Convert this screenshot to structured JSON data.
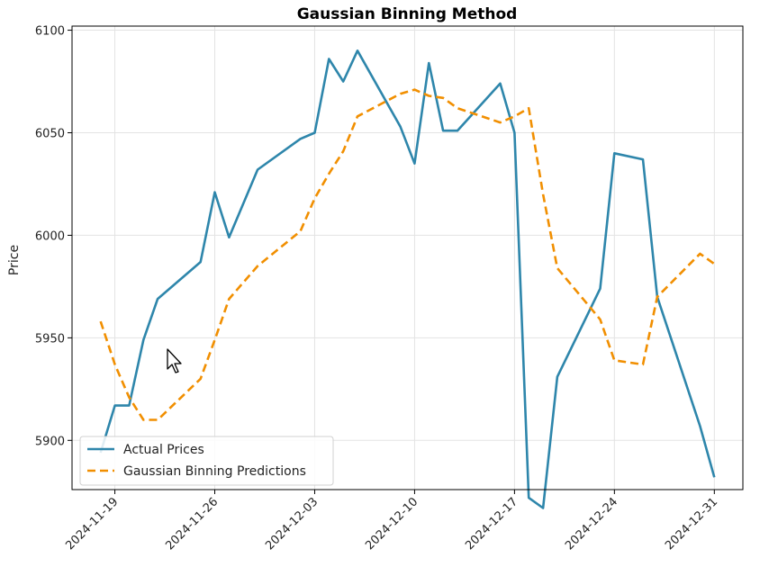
{
  "chart_data": {
    "type": "line",
    "title": "Gaussian Binning Method",
    "xlabel": "",
    "ylabel": "Price",
    "xlim": [
      "2024-11-16",
      "2025-01-02"
    ],
    "ylim": [
      5876,
      6102
    ],
    "yticks": [
      5900,
      5950,
      6000,
      6050,
      6100
    ],
    "xticks": [
      "2024-11-19",
      "2024-11-26",
      "2024-12-03",
      "2024-12-10",
      "2024-12-17",
      "2024-12-24",
      "2024-12-31"
    ],
    "grid": true,
    "legend": {
      "position": "lower-left"
    },
    "series": [
      {
        "name": "Actual Prices",
        "color": "#2e86ab",
        "style": "solid",
        "points": [
          [
            "2024-11-18",
            5894
          ],
          [
            "2024-11-19",
            5917
          ],
          [
            "2024-11-20",
            5917
          ],
          [
            "2024-11-21",
            5949
          ],
          [
            "2024-11-22",
            5969
          ],
          [
            "2024-11-25",
            5987
          ],
          [
            "2024-11-26",
            6021
          ],
          [
            "2024-11-27",
            5999
          ],
          [
            "2024-11-29",
            6032
          ],
          [
            "2024-12-02",
            6047
          ],
          [
            "2024-12-03",
            6050
          ],
          [
            "2024-12-04",
            6086
          ],
          [
            "2024-12-05",
            6075
          ],
          [
            "2024-12-06",
            6090
          ],
          [
            "2024-12-09",
            6053
          ],
          [
            "2024-12-10",
            6035
          ],
          [
            "2024-12-11",
            6084
          ],
          [
            "2024-12-12",
            6051
          ],
          [
            "2024-12-13",
            6051
          ],
          [
            "2024-12-16",
            6074
          ],
          [
            "2024-12-17",
            6050
          ],
          [
            "2024-12-18",
            5872
          ],
          [
            "2024-12-19",
            5867
          ],
          [
            "2024-12-20",
            5931
          ],
          [
            "2024-12-23",
            5974
          ],
          [
            "2024-12-24",
            6040
          ],
          [
            "2024-12-26",
            6037
          ],
          [
            "2024-12-27",
            5970
          ],
          [
            "2024-12-30",
            5907
          ],
          [
            "2024-12-31",
            5882
          ]
        ]
      },
      {
        "name": "Gaussian Binning Predictions",
        "color": "#f18f01",
        "style": "dashed",
        "points": [
          [
            "2024-11-18",
            5958
          ],
          [
            "2024-11-19",
            5937
          ],
          [
            "2024-11-20",
            5921
          ],
          [
            "2024-11-21",
            5910
          ],
          [
            "2024-11-22",
            5910
          ],
          [
            "2024-11-25",
            5930
          ],
          [
            "2024-11-26",
            5949
          ],
          [
            "2024-11-27",
            5969
          ],
          [
            "2024-11-29",
            5985
          ],
          [
            "2024-12-02",
            6002
          ],
          [
            "2024-12-03",
            6018
          ],
          [
            "2024-12-04",
            6030
          ],
          [
            "2024-12-05",
            6041
          ],
          [
            "2024-12-06",
            6058
          ],
          [
            "2024-12-09",
            6069
          ],
          [
            "2024-12-10",
            6071
          ],
          [
            "2024-12-11",
            6068
          ],
          [
            "2024-12-12",
            6067
          ],
          [
            "2024-12-13",
            6062
          ],
          [
            "2024-12-16",
            6055
          ],
          [
            "2024-12-17",
            6058
          ],
          [
            "2024-12-18",
            6062
          ],
          [
            "2024-12-19",
            6020
          ],
          [
            "2024-12-20",
            5984
          ],
          [
            "2024-12-23",
            5959
          ],
          [
            "2024-12-24",
            5939
          ],
          [
            "2024-12-26",
            5937
          ],
          [
            "2024-12-27",
            5970
          ],
          [
            "2024-12-30",
            5991
          ],
          [
            "2024-12-31",
            5986
          ]
        ]
      }
    ]
  }
}
